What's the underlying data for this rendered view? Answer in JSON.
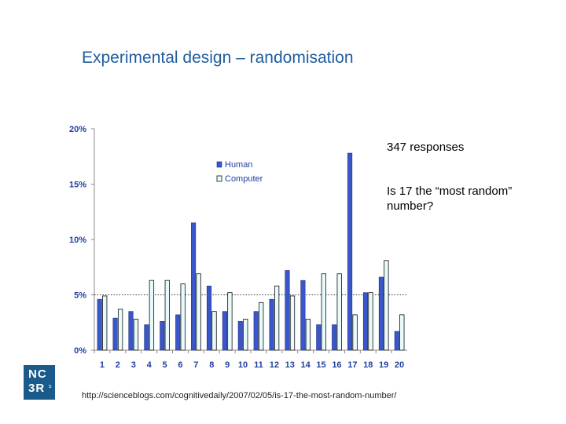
{
  "title": "Experimental design – randomisation",
  "notes": {
    "responses": "347 responses",
    "question": "Is 17 the “most random” number?"
  },
  "source_url": "http://scienceblogs.com/cognitivedaily/2007/02/05/is-17-the-most-random-number/",
  "logo": {
    "line1": "NC",
    "line2": "3R",
    "sup": "s"
  },
  "colors": {
    "title": "#1f5c9e",
    "human": "#3a57c9",
    "computer": "#e8fafa",
    "logo_bg": "#1b5b8c"
  },
  "chart_data": {
    "type": "bar",
    "categories": [
      "1",
      "2",
      "3",
      "4",
      "5",
      "6",
      "7",
      "8",
      "9",
      "10",
      "11",
      "12",
      "13",
      "14",
      "15",
      "16",
      "17",
      "18",
      "19",
      "20"
    ],
    "series": [
      {
        "name": "Human",
        "values": [
          4.6,
          2.9,
          3.5,
          2.3,
          2.6,
          3.2,
          11.5,
          5.8,
          3.5,
          2.6,
          3.5,
          4.6,
          7.2,
          6.3,
          2.3,
          2.3,
          17.8,
          5.2,
          6.6,
          1.7
        ]
      },
      {
        "name": "Computer",
        "values": [
          4.9,
          3.7,
          2.8,
          6.3,
          6.3,
          6.0,
          6.9,
          3.5,
          5.2,
          2.8,
          4.3,
          5.8,
          4.9,
          2.8,
          6.9,
          6.9,
          3.2,
          5.2,
          8.1,
          3.2
        ]
      }
    ],
    "ytick_labels": [
      "0%",
      "5%",
      "10%",
      "15%",
      "20%"
    ],
    "ylim": [
      0,
      20
    ],
    "reference_line": 5,
    "legend_position": "top-center",
    "grid": false
  }
}
